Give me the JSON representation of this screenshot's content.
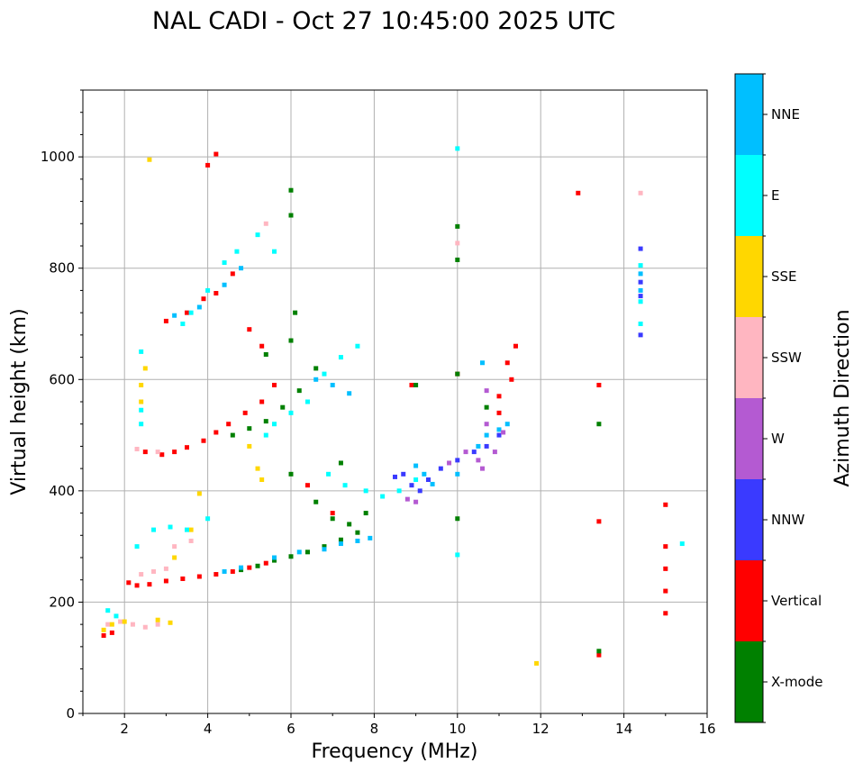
{
  "chart_data": {
    "type": "scatter",
    "title": "NAL CADI - Oct 27 10:45:00 2025 UTC",
    "xlabel": "Frequency (MHz)",
    "ylabel": "Virtual height (km)",
    "xlim": [
      1,
      16
    ],
    "ylim": [
      0,
      1120
    ],
    "xticks": [
      2,
      4,
      6,
      8,
      10,
      12,
      14,
      16
    ],
    "yticks": [
      0,
      200,
      400,
      600,
      800,
      1000
    ],
    "grid": true,
    "colorbar": {
      "label": "Azimuth Direction",
      "position": "right",
      "categories": [
        {
          "name": "X-mode",
          "color": "#008000"
        },
        {
          "name": "Vertical",
          "color": "#ff0000"
        },
        {
          "name": "NNW",
          "color": "#3a3aff"
        },
        {
          "name": "W",
          "color": "#b45ad2"
        },
        {
          "name": "SSW",
          "color": "#ffb6c1"
        },
        {
          "name": "SSE",
          "color": "#ffd700"
        },
        {
          "name": "E",
          "color": "#00ffff"
        },
        {
          "name": "NNE",
          "color": "#00bfff"
        }
      ]
    },
    "series": [
      {
        "name": "Vertical",
        "points": [
          [
            1.5,
            140
          ],
          [
            1.7,
            145
          ],
          [
            2.1,
            235
          ],
          [
            2.3,
            230
          ],
          [
            2.6,
            232
          ],
          [
            3.0,
            238
          ],
          [
            3.4,
            242
          ],
          [
            3.8,
            246
          ],
          [
            4.2,
            250
          ],
          [
            4.6,
            255
          ],
          [
            5.0,
            262
          ],
          [
            5.4,
            270
          ],
          [
            2.5,
            470
          ],
          [
            2.9,
            465
          ],
          [
            3.2,
            470
          ],
          [
            3.5,
            478
          ],
          [
            3.9,
            490
          ],
          [
            4.2,
            505
          ],
          [
            4.5,
            520
          ],
          [
            4.9,
            540
          ],
          [
            5.3,
            560
          ],
          [
            5.6,
            590
          ],
          [
            3.0,
            705
          ],
          [
            3.5,
            720
          ],
          [
            3.9,
            745
          ],
          [
            4.2,
            755
          ],
          [
            4.6,
            790
          ],
          [
            4.2,
            1005
          ],
          [
            4.0,
            985
          ],
          [
            5.0,
            690
          ],
          [
            5.3,
            660
          ],
          [
            6.4,
            410
          ],
          [
            7.0,
            360
          ],
          [
            8.9,
            590
          ],
          [
            10.0,
            610
          ],
          [
            11.0,
            540
          ],
          [
            11.3,
            600
          ],
          [
            11.2,
            630
          ],
          [
            11.4,
            660
          ],
          [
            11.0,
            570
          ],
          [
            13.4,
            105
          ],
          [
            13.4,
            345
          ],
          [
            13.4,
            590
          ],
          [
            12.9,
            935
          ],
          [
            15.0,
            375
          ],
          [
            15.0,
            300
          ],
          [
            15.0,
            260
          ],
          [
            15.0,
            220
          ],
          [
            15.0,
            180
          ]
        ]
      },
      {
        "name": "X-mode",
        "points": [
          [
            4.8,
            258
          ],
          [
            5.2,
            265
          ],
          [
            5.6,
            275
          ],
          [
            6.0,
            282
          ],
          [
            6.4,
            290
          ],
          [
            6.8,
            300
          ],
          [
            7.2,
            312
          ],
          [
            7.6,
            325
          ],
          [
            4.6,
            500
          ],
          [
            5.0,
            512
          ],
          [
            5.4,
            525
          ],
          [
            5.8,
            550
          ],
          [
            6.2,
            580
          ],
          [
            6.6,
            620
          ],
          [
            6.0,
            670
          ],
          [
            6.1,
            720
          ],
          [
            6.0,
            895
          ],
          [
            6.0,
            940
          ],
          [
            6.0,
            430
          ],
          [
            6.6,
            380
          ],
          [
            7.0,
            350
          ],
          [
            7.4,
            340
          ],
          [
            7.8,
            360
          ],
          [
            7.2,
            450
          ],
          [
            9.0,
            590
          ],
          [
            10.0,
            875
          ],
          [
            10.0,
            815
          ],
          [
            10.0,
            350
          ],
          [
            10.7,
            550
          ],
          [
            10.0,
            610
          ],
          [
            13.4,
            520
          ],
          [
            13.4,
            112
          ],
          [
            5.4,
            645
          ]
        ]
      },
      {
        "name": "NNW",
        "points": [
          [
            8.5,
            425
          ],
          [
            8.7,
            430
          ],
          [
            8.9,
            410
          ],
          [
            9.1,
            400
          ],
          [
            9.3,
            420
          ],
          [
            9.6,
            440
          ],
          [
            10.0,
            455
          ],
          [
            10.4,
            470
          ],
          [
            10.7,
            480
          ],
          [
            11.0,
            500
          ],
          [
            14.4,
            835
          ],
          [
            14.4,
            680
          ],
          [
            14.4,
            775
          ],
          [
            14.4,
            750
          ]
        ]
      },
      {
        "name": "NNE",
        "points": [
          [
            4.4,
            255
          ],
          [
            4.8,
            262
          ],
          [
            5.6,
            280
          ],
          [
            6.2,
            290
          ],
          [
            6.8,
            295
          ],
          [
            7.2,
            305
          ],
          [
            7.6,
            310
          ],
          [
            7.9,
            315
          ],
          [
            9.0,
            445
          ],
          [
            9.2,
            430
          ],
          [
            9.4,
            412
          ],
          [
            10.0,
            430
          ],
          [
            10.5,
            480
          ],
          [
            10.7,
            500
          ],
          [
            11.0,
            510
          ],
          [
            11.2,
            520
          ],
          [
            3.2,
            715
          ],
          [
            3.8,
            730
          ],
          [
            4.4,
            770
          ],
          [
            4.8,
            800
          ],
          [
            6.6,
            600
          ],
          [
            7.0,
            590
          ],
          [
            7.4,
            575
          ],
          [
            14.4,
            760
          ],
          [
            14.4,
            790
          ],
          [
            10.6,
            630
          ]
        ]
      },
      {
        "name": "W",
        "points": [
          [
            8.8,
            385
          ],
          [
            9.0,
            380
          ],
          [
            9.8,
            450
          ],
          [
            10.2,
            470
          ],
          [
            10.5,
            455
          ],
          [
            10.6,
            440
          ],
          [
            10.7,
            520
          ],
          [
            10.7,
            580
          ],
          [
            11.1,
            505
          ],
          [
            10.9,
            470
          ]
        ]
      },
      {
        "name": "SSW",
        "points": [
          [
            1.6,
            160
          ],
          [
            1.9,
            165
          ],
          [
            2.2,
            160
          ],
          [
            2.5,
            155
          ],
          [
            2.8,
            160
          ],
          [
            2.4,
            250
          ],
          [
            2.7,
            255
          ],
          [
            3.0,
            260
          ],
          [
            2.3,
            475
          ],
          [
            2.8,
            470
          ],
          [
            5.4,
            880
          ],
          [
            10.0,
            845
          ],
          [
            14.4,
            935
          ],
          [
            3.2,
            300
          ],
          [
            3.6,
            310
          ]
        ]
      },
      {
        "name": "SSE",
        "points": [
          [
            1.5,
            150
          ],
          [
            1.7,
            160
          ],
          [
            2.0,
            165
          ],
          [
            2.8,
            168
          ],
          [
            3.1,
            163
          ],
          [
            2.4,
            590
          ],
          [
            2.4,
            560
          ],
          [
            2.5,
            620
          ],
          [
            5.0,
            480
          ],
          [
            5.2,
            440
          ],
          [
            5.3,
            420
          ],
          [
            3.8,
            395
          ],
          [
            11.9,
            90
          ],
          [
            2.6,
            995
          ],
          [
            3.2,
            280
          ],
          [
            3.6,
            330
          ]
        ]
      },
      {
        "name": "E",
        "points": [
          [
            1.6,
            185
          ],
          [
            1.8,
            175
          ],
          [
            2.3,
            300
          ],
          [
            2.7,
            330
          ],
          [
            3.1,
            335
          ],
          [
            3.5,
            330
          ],
          [
            4.0,
            350
          ],
          [
            2.4,
            520
          ],
          [
            2.4,
            545
          ],
          [
            2.4,
            650
          ],
          [
            3.4,
            700
          ],
          [
            3.6,
            720
          ],
          [
            4.0,
            760
          ],
          [
            4.4,
            810
          ],
          [
            4.7,
            830
          ],
          [
            5.2,
            860
          ],
          [
            5.6,
            830
          ],
          [
            5.4,
            500
          ],
          [
            5.6,
            520
          ],
          [
            6.0,
            540
          ],
          [
            6.4,
            560
          ],
          [
            6.8,
            610
          ],
          [
            7.2,
            640
          ],
          [
            7.6,
            660
          ],
          [
            6.9,
            430
          ],
          [
            7.3,
            410
          ],
          [
            7.8,
            400
          ],
          [
            8.2,
            390
          ],
          [
            8.6,
            400
          ],
          [
            9.0,
            420
          ],
          [
            10.0,
            285
          ],
          [
            10.0,
            1015
          ],
          [
            14.4,
            700
          ],
          [
            14.4,
            740
          ],
          [
            15.4,
            305
          ],
          [
            14.4,
            805
          ]
        ]
      }
    ]
  }
}
